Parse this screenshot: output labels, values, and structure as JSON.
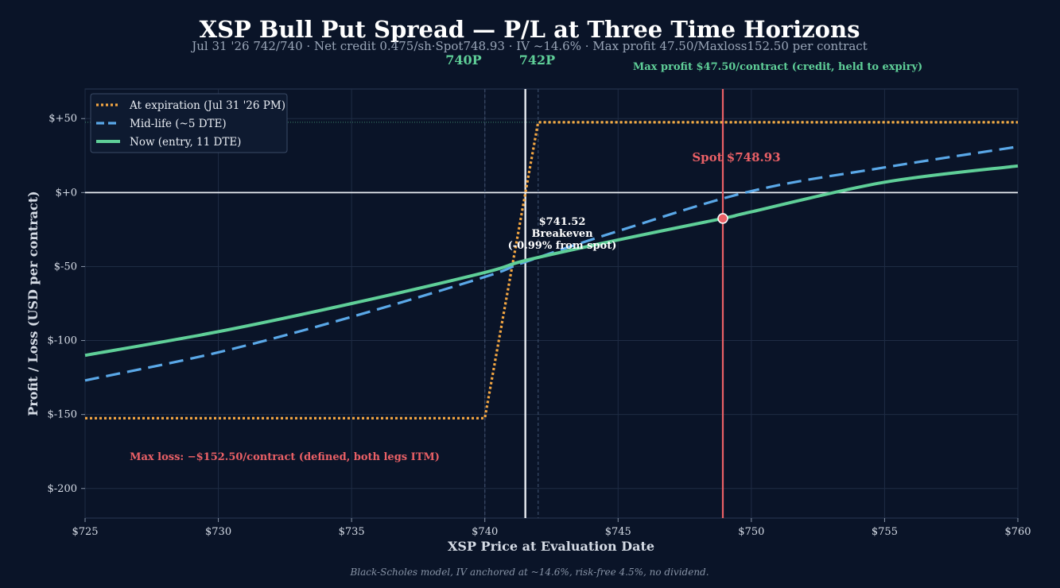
{
  "chart_data": {
    "type": "line",
    "title": "XSP Bull Put Spread — P/L at Three Time Horizons",
    "subtitle": "Jul 31 '26 742/740 · Net credit 0.475/sh·Spot748.93 · IV ~14.6% · Max profit 47.50/Maxloss152.50 per contract",
    "xlabel": "XSP Price at Evaluation Date",
    "ylabel": "Profit / Loss (USD per contract)",
    "footer": "Black-Scholes model, IV anchored at ~14.6%, risk-free 4.5%, no dividend.",
    "xlim": [
      725,
      760
    ],
    "ylim": [
      -220,
      70
    ],
    "x_ticks": [
      725,
      730,
      735,
      740,
      745,
      750,
      755,
      760
    ],
    "x_tick_labels": [
      "$725",
      "$730",
      "$735",
      "$740",
      "$745",
      "$750",
      "$755",
      "$760"
    ],
    "y_ticks": [
      50,
      0,
      -50,
      -100,
      -150,
      -200
    ],
    "y_tick_labels": [
      "$+50",
      "$+0",
      "$-50",
      "$-100",
      "$-150",
      "$-200"
    ],
    "grid": true,
    "legend_position": "top-left",
    "series": [
      {
        "name": "At expiration (Jul 31 '26 PM)",
        "color": "#f5a742",
        "style": "dotted",
        "x": [
          725,
          740,
          742,
          760
        ],
        "y": [
          -152.5,
          -152.5,
          47.5,
          47.5
        ]
      },
      {
        "name": "Mid-life (~5 DTE)",
        "color": "#5aa8e8",
        "style": "dashed",
        "x": [
          725,
          730,
          735,
          740,
          741.5,
          745,
          750,
          755,
          760
        ],
        "y": [
          -127,
          -108,
          -84,
          -57,
          -47,
          -26,
          1,
          17,
          31
        ]
      },
      {
        "name": "Now (entry, 11 DTE)",
        "color": "#5fcf98",
        "style": "solid",
        "x": [
          725,
          730,
          735,
          740,
          741.5,
          745,
          748.93,
          750,
          755,
          760
        ],
        "y": [
          -110,
          -94,
          -75,
          -54,
          -46,
          -32,
          -17.5,
          -13,
          7,
          18
        ]
      }
    ],
    "strikes": [
      {
        "x": 740,
        "label": "740P"
      },
      {
        "x": 742,
        "label": "742P"
      }
    ],
    "breakeven": {
      "x": 741.52,
      "label_price": "$741.52",
      "label_name": "Breakeven",
      "label_pct": "(-0.99% from spot)"
    },
    "spot": {
      "x": 748.93,
      "y": -17.5,
      "label": "Spot $748.93",
      "color": "#ea6066"
    },
    "max_profit": {
      "y": 47.5,
      "label": "Max profit $47.50/contract (credit, held to expiry)"
    },
    "max_loss": {
      "y": -152.5,
      "label": "Max loss: −$152.50/contract (defined, both legs ITM)"
    },
    "colors": {
      "background": "#0a1428",
      "grid": "#1f2c44",
      "zero_line": "#e8ecf2",
      "breakeven_line": "#e8ecf2",
      "strike_line": "#3a4a66",
      "max_profit_line": "#5fcf98"
    }
  }
}
